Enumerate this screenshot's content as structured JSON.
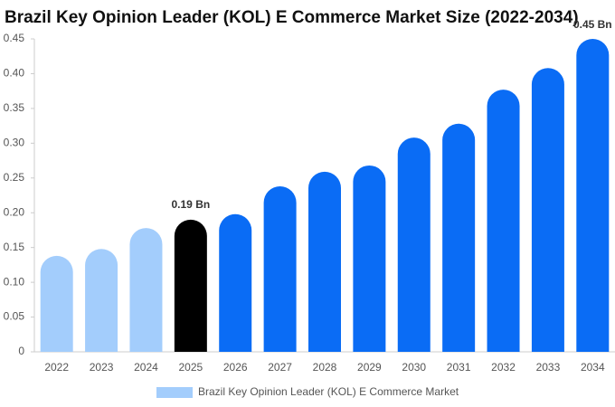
{
  "chart_data": {
    "type": "bar",
    "title": "Brazil Key Opinion Leader (KOL) E Commerce Market Size (2022-2034)",
    "categories": [
      "2022",
      "2023",
      "2024",
      "2025",
      "2026",
      "2027",
      "2028",
      "2029",
      "2030",
      "2031",
      "2032",
      "2033",
      "2034"
    ],
    "series": [
      {
        "name": "Brazil Key Opinion Leader (KOL) E Commerce Market",
        "color": "#a3cdfc",
        "values": [
          0.138,
          0.148,
          0.178,
          0.19,
          0.198,
          0.238,
          0.259,
          0.268,
          0.308,
          0.328,
          0.377,
          0.408,
          0.45
        ],
        "value_labels": [
          null,
          null,
          null,
          "0.19 Bn",
          null,
          null,
          null,
          null,
          null,
          null,
          null,
          null,
          "0.45 Bn"
        ],
        "colors": [
          "#a3cdfc",
          "#a3cdfc",
          "#a3cdfc",
          "#000000",
          "#0a6cf5",
          "#0a6cf5",
          "#0a6cf5",
          "#0a6cf5",
          "#0a6cf5",
          "#0a6cf5",
          "#0a6cf5",
          "#0a6cf5",
          "#0a6cf5"
        ]
      }
    ],
    "ylim": [
      0,
      0.45
    ],
    "yticks": [
      0,
      0.05,
      {
        "value": 0.1,
        "label": "0.10"
      },
      0.15,
      {
        "value": 0.2,
        "label": "0.20"
      },
      0.25,
      {
        "value": 0.3,
        "label": "0.30"
      },
      0.35,
      {
        "value": 0.4,
        "label": "0.40"
      },
      0.45
    ],
    "grid": false,
    "legend": "bottom"
  }
}
